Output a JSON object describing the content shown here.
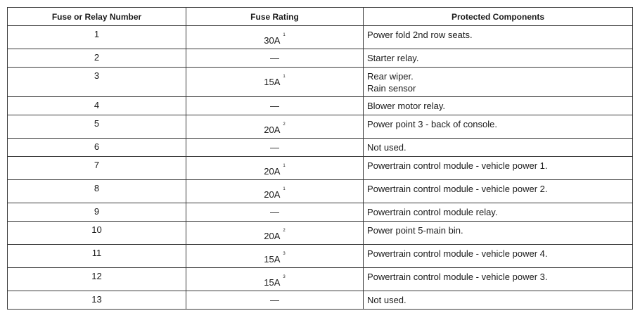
{
  "table": {
    "headers": [
      "Fuse or Relay Number",
      "Fuse Rating",
      "Protected Components"
    ],
    "rows": [
      {
        "number": "1",
        "rating": "30A",
        "note": "1",
        "components": [
          "Power fold 2nd row seats."
        ],
        "height": 33
      },
      {
        "number": "2",
        "rating": "—",
        "note": "",
        "components": [
          "Starter relay."
        ],
        "height": 26
      },
      {
        "number": "3",
        "rating": "15A",
        "note": "1",
        "components": [
          "Rear wiper.",
          "Rain sensor"
        ],
        "height": 42
      },
      {
        "number": "4",
        "rating": "—",
        "note": "",
        "components": [
          "Blower motor relay."
        ],
        "height": 26
      },
      {
        "number": "5",
        "rating": "20A",
        "note": "2",
        "components": [
          "Power point 3 - back of console."
        ],
        "height": 33
      },
      {
        "number": "6",
        "rating": "—",
        "note": "",
        "components": [
          "Not used."
        ],
        "height": 26
      },
      {
        "number": "7",
        "rating": "20A",
        "note": "1",
        "components": [
          "Powertrain control module - vehicle power 1."
        ],
        "height": 33
      },
      {
        "number": "8",
        "rating": "20A",
        "note": "1",
        "components": [
          "Powertrain control module - vehicle power 2."
        ],
        "height": 33
      },
      {
        "number": "9",
        "rating": "—",
        "note": "",
        "components": [
          "Powertrain control module relay."
        ],
        "height": 26
      },
      {
        "number": "10",
        "rating": "20A",
        "note": "2",
        "components": [
          "Power point 5-main bin."
        ],
        "height": 33
      },
      {
        "number": "11",
        "rating": "15A",
        "note": "3",
        "components": [
          "Powertrain control module - vehicle power 4."
        ],
        "height": 33
      },
      {
        "number": "12",
        "rating": "15A",
        "note": "3",
        "components": [
          "Powertrain control module - vehicle power 3."
        ],
        "height": 33
      },
      {
        "number": "13",
        "rating": "—",
        "note": "",
        "components": [
          "Not used."
        ],
        "height": 26
      }
    ]
  }
}
